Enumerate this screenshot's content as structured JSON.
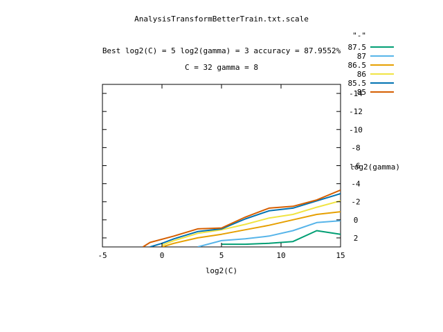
{
  "chart_data": {
    "type": "line",
    "title": "AnalysisTransformBetterTrain.txt.scale",
    "subtitle_lines": [
      "Best log2(C) = 5  log2(gamma) = 3  accuracy = 87.9552%",
      "C = 32  gamma = 8"
    ],
    "xlabel": "log2(C)",
    "ylabel": "log2(gamma)",
    "xlim": [
      -5,
      15
    ],
    "ylim": [
      3,
      -15
    ],
    "x_ticks": [
      -5,
      0,
      5,
      10,
      15
    ],
    "y_ticks": [
      -14,
      -12,
      -10,
      -8,
      -6,
      -4,
      -2,
      0,
      2
    ],
    "y_axis_side": "right",
    "legend_title": "\"-\"",
    "legend_position": "top-right",
    "grid": false,
    "series": [
      {
        "name": "87.5",
        "color": "#009e73",
        "points": [
          [
            5,
            2.7
          ],
          [
            7,
            2.7
          ],
          [
            9,
            2.6
          ],
          [
            11,
            2.4
          ],
          [
            13,
            1.2
          ],
          [
            15,
            1.6
          ]
        ]
      },
      {
        "name": "87",
        "color": "#56b4e9",
        "points": [
          [
            3,
            3.0
          ],
          [
            5,
            2.3
          ],
          [
            7,
            2.1
          ],
          [
            9,
            1.8
          ],
          [
            11,
            1.2
          ],
          [
            13,
            0.3
          ],
          [
            15,
            0.1
          ]
        ]
      },
      {
        "name": "86.5",
        "color": "#e69f00",
        "points": [
          [
            0,
            3.0
          ],
          [
            1,
            2.6
          ],
          [
            3,
            2.0
          ],
          [
            5,
            1.6
          ],
          [
            7,
            1.1
          ],
          [
            9,
            0.6
          ],
          [
            11,
            0.0
          ],
          [
            13,
            -0.6
          ],
          [
            15,
            -0.9
          ]
        ]
      },
      {
        "name": "86",
        "color": "#f0e442",
        "points": [
          [
            0,
            2.8
          ],
          [
            1,
            2.3
          ],
          [
            3,
            1.5
          ],
          [
            5,
            1.1
          ],
          [
            7,
            0.5
          ],
          [
            9,
            -0.2
          ],
          [
            11,
            -0.6
          ],
          [
            13,
            -1.4
          ],
          [
            15,
            -2.1
          ]
        ]
      },
      {
        "name": "85.5",
        "color": "#0072b2",
        "points": [
          [
            -1,
            3.0
          ],
          [
            0,
            2.6
          ],
          [
            1,
            2.1
          ],
          [
            3,
            1.3
          ],
          [
            5,
            1.0
          ],
          [
            7,
            -0.1
          ],
          [
            9,
            -1.0
          ],
          [
            11,
            -1.3
          ],
          [
            13,
            -2.1
          ],
          [
            15,
            -2.9
          ]
        ]
      },
      {
        "name": "85",
        "color": "#d55e00",
        "points": [
          [
            -1.6,
            3.0
          ],
          [
            -1,
            2.5
          ],
          [
            1,
            1.8
          ],
          [
            3,
            1.0
          ],
          [
            5,
            0.9
          ],
          [
            7,
            -0.3
          ],
          [
            9,
            -1.3
          ],
          [
            11,
            -1.5
          ],
          [
            13,
            -2.2
          ],
          [
            15,
            -3.3
          ]
        ]
      }
    ]
  }
}
